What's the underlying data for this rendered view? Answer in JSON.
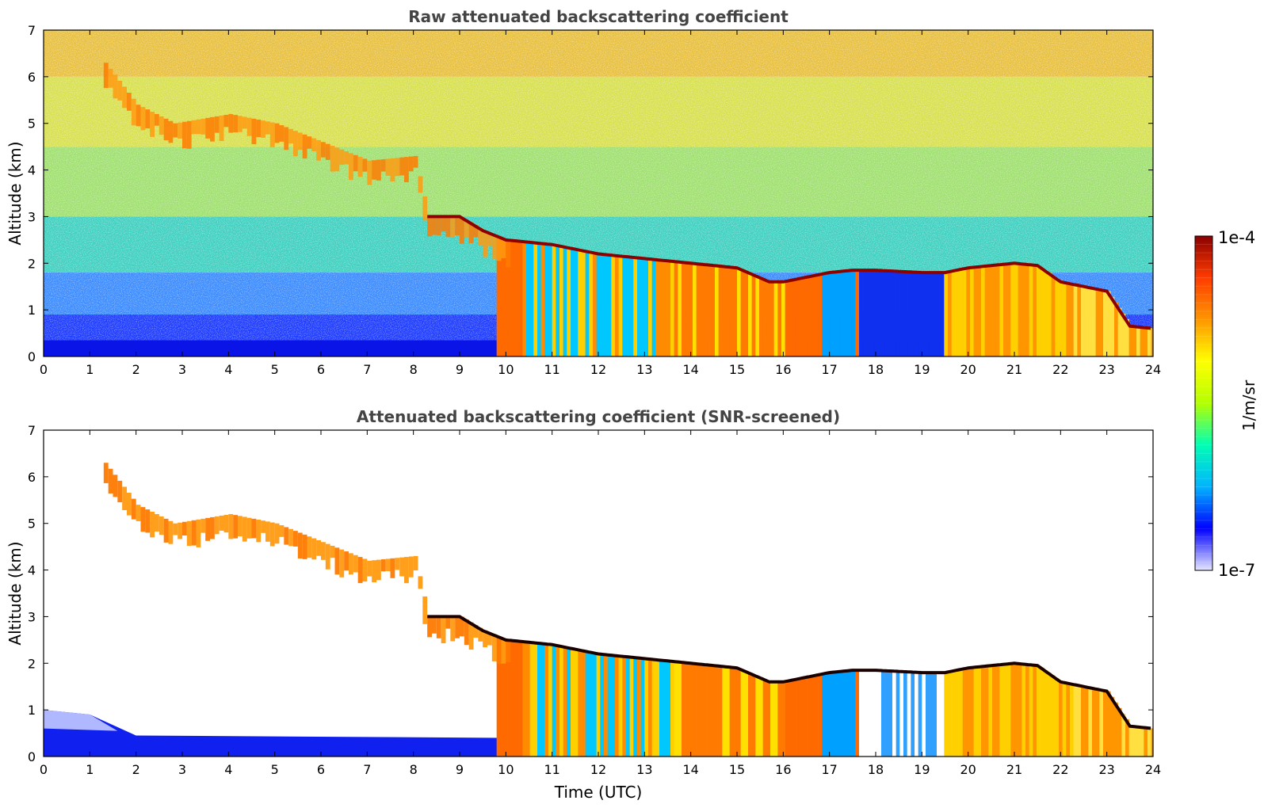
{
  "figure": {
    "colorbar": {
      "max_label": "1e-4",
      "min_label": "1e-7",
      "unit_label": "1/m/sr",
      "colormap": "jet",
      "colors": [
        "#e6e6ff",
        "#0000ff",
        "#00b4ff",
        "#00ffb4",
        "#b4ff00",
        "#ffff00",
        "#ff9600",
        "#ff3c00",
        "#8c0000"
      ]
    },
    "x_axis_label": "Time (UTC)"
  },
  "chart_data": [
    {
      "type": "heatmap",
      "title": "Raw attenuated backscattering coefficient",
      "xlabel": "",
      "ylabel": "Altitude (km)",
      "xlim": [
        0,
        24
      ],
      "ylim": [
        0,
        7
      ],
      "xticks": [
        "0",
        "1",
        "2",
        "3",
        "4",
        "5",
        "6",
        "7",
        "8",
        "9",
        "10",
        "11",
        "12",
        "13",
        "14",
        "15",
        "16",
        "17",
        "18",
        "19",
        "20",
        "21",
        "22",
        "23",
        "24"
      ],
      "yticks": [
        "0",
        "1",
        "2",
        "3",
        "4",
        "5",
        "6",
        "7"
      ],
      "value_range": [
        1e-07,
        0.0001
      ],
      "scale": "log",
      "cloud_top_km": {
        "time_h": [
          1.3,
          2.0,
          2.8,
          4.0,
          5.0,
          6.0,
          7.0,
          8.0,
          8.3,
          9.0,
          9.5,
          10.0,
          11.0,
          12.0,
          13.0,
          14.0,
          15.0,
          15.7,
          16.0,
          17.0,
          17.5,
          18.0,
          19.0,
          19.5,
          20.0,
          21.0,
          21.5,
          22.0,
          22.5,
          23.0,
          23.5,
          24.0
        ],
        "altitude_km": [
          6.3,
          5.4,
          5.0,
          5.2,
          5.0,
          4.6,
          4.2,
          4.3,
          3.0,
          3.0,
          2.7,
          2.5,
          2.4,
          2.2,
          2.1,
          2.0,
          1.9,
          1.6,
          1.6,
          1.8,
          1.85,
          1.85,
          1.8,
          1.8,
          1.9,
          2.0,
          1.95,
          1.6,
          1.5,
          1.4,
          0.65,
          0.6
        ]
      }
    },
    {
      "type": "heatmap",
      "title": "Attenuated backscattering coefficient (SNR-screened)",
      "xlabel": "Time (UTC)",
      "ylabel": "Altitude (km)",
      "xlim": [
        0,
        24
      ],
      "ylim": [
        0,
        7
      ],
      "xticks": [
        "0",
        "1",
        "2",
        "3",
        "4",
        "5",
        "6",
        "7",
        "8",
        "9",
        "10",
        "11",
        "12",
        "13",
        "14",
        "15",
        "16",
        "17",
        "18",
        "19",
        "20",
        "21",
        "22",
        "23",
        "24"
      ],
      "yticks": [
        "0",
        "1",
        "2",
        "3",
        "4",
        "5",
        "6",
        "7"
      ],
      "value_range": [
        1e-07,
        0.0001
      ],
      "scale": "log"
    }
  ]
}
